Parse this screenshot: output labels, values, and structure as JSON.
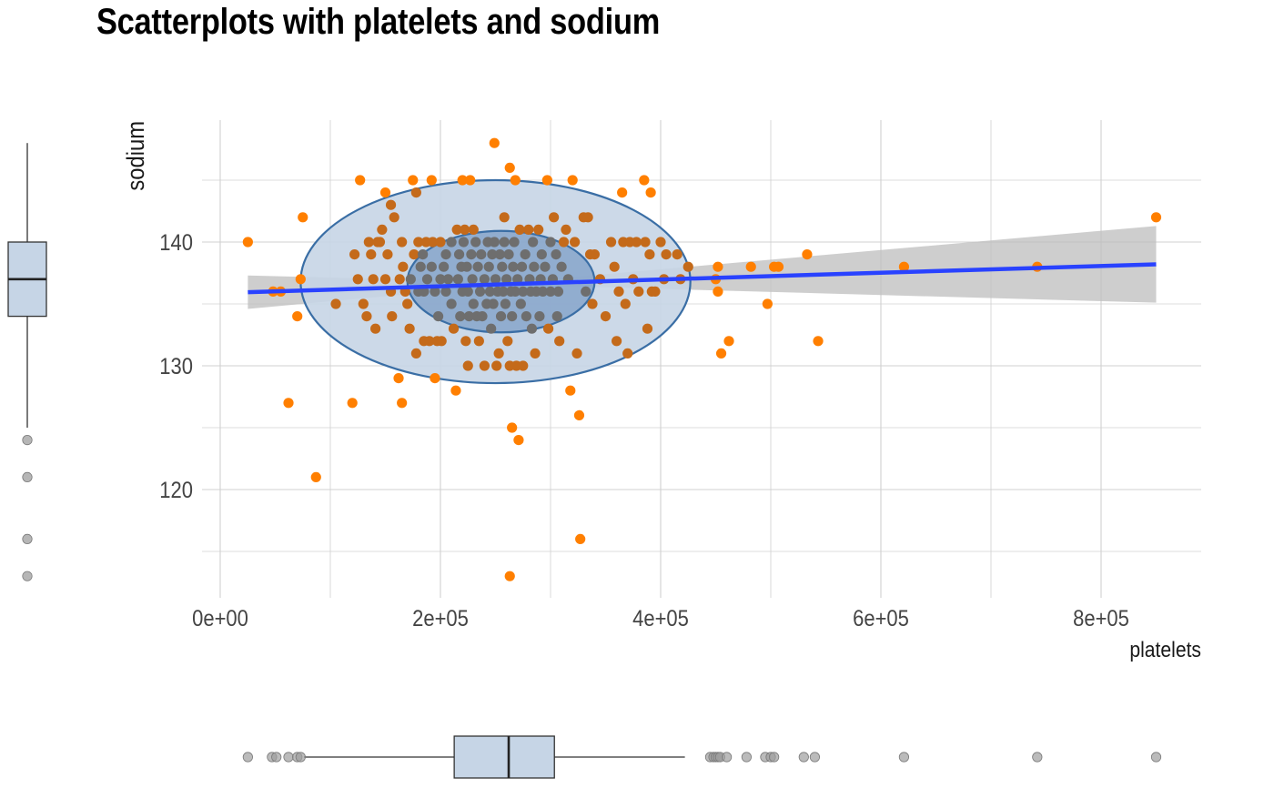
{
  "chart_data": {
    "type": "scatter",
    "title": "Scatterplots with platelets and sodium",
    "xlabel": "platelets",
    "ylabel": "sodium",
    "xlim": [
      -10000.0,
      890000.0
    ],
    "ylim": [
      112,
      150
    ],
    "x_ticks": [
      {
        "value": 0,
        "label": "0e+00"
      },
      {
        "value": 200000,
        "label": "2e+05"
      },
      {
        "value": 400000,
        "label": "4e+05"
      },
      {
        "value": 600000,
        "label": "6e+05"
      },
      {
        "value": 800000,
        "label": "8e+05"
      }
    ],
    "y_ticks": [
      {
        "value": 120,
        "label": "120"
      },
      {
        "value": 130,
        "label": "130"
      },
      {
        "value": 140,
        "label": "140"
      }
    ],
    "grid": true,
    "colors": {
      "points": "#ff7f00",
      "points_in_ellipse": "#c46a1a",
      "points_in_inner": "#6e6e6e",
      "regression_line": "#2942ff",
      "ci_band": "#bdbdbd",
      "ellipse_fill": "#c6d5e6",
      "ellipse_stroke": "#3a6ea5",
      "inner_ellipse_fill": "#7d9dc7",
      "box_fill": "#c6d5e6",
      "box_outlier": "#9e9e9e",
      "grid": "#d0d0d0"
    },
    "regression": {
      "x_start": 25100,
      "y_start": 135.95,
      "x_end": 850000,
      "y_end": 138.2
    },
    "confidence_band": [
      [
        25100,
        134.6,
        137.3
      ],
      [
        265000,
        136.55,
        136.75
      ],
      [
        850000,
        135.1,
        141.3
      ]
    ],
    "ellipses": [
      {
        "cx": 250000,
        "cy": 136.8,
        "rx": 177000,
        "ry": 8.2,
        "level": "outer"
      },
      {
        "cx": 255000,
        "cy": 136.8,
        "rx": 85000,
        "ry": 4.1,
        "level": "inner"
      }
    ],
    "points": [
      [
        25100,
        140
      ],
      [
        48000,
        136
      ],
      [
        55000,
        136
      ],
      [
        62000,
        127
      ],
      [
        70000,
        134
      ],
      [
        73000,
        137
      ],
      [
        75000,
        142
      ],
      [
        87000,
        121
      ],
      [
        105000,
        135
      ],
      [
        120000,
        127
      ],
      [
        122000,
        139
      ],
      [
        125000,
        137
      ],
      [
        127000,
        145
      ],
      [
        130000,
        135
      ],
      [
        133000,
        134
      ],
      [
        135000,
        140
      ],
      [
        137000,
        139
      ],
      [
        139000,
        137
      ],
      [
        141000,
        133
      ],
      [
        143000,
        140
      ],
      [
        145000,
        140
      ],
      [
        147000,
        141
      ],
      [
        150000,
        144
      ],
      [
        150000,
        137
      ],
      [
        152000,
        139
      ],
      [
        155000,
        136
      ],
      [
        155000,
        143
      ],
      [
        156000,
        134
      ],
      [
        158000,
        142
      ],
      [
        162000,
        129
      ],
      [
        163000,
        137
      ],
      [
        165000,
        140
      ],
      [
        165000,
        127
      ],
      [
        166000,
        138
      ],
      [
        168000,
        136
      ],
      [
        170000,
        135
      ],
      [
        172000,
        133
      ],
      [
        173000,
        137
      ],
      [
        175000,
        145
      ],
      [
        176000,
        139
      ],
      [
        178000,
        131
      ],
      [
        178000,
        144
      ],
      [
        180000,
        136
      ],
      [
        180000,
        140
      ],
      [
        182000,
        138
      ],
      [
        184000,
        139
      ],
      [
        185000,
        132
      ],
      [
        185000,
        136
      ],
      [
        187000,
        140
      ],
      [
        188000,
        137
      ],
      [
        190000,
        132
      ],
      [
        192000,
        145
      ],
      [
        192000,
        138
      ],
      [
        193000,
        140
      ],
      [
        195000,
        136
      ],
      [
        195000,
        129
      ],
      [
        197000,
        132
      ],
      [
        198000,
        134
      ],
      [
        200000,
        140
      ],
      [
        200000,
        137
      ],
      [
        201000,
        132
      ],
      [
        203000,
        138
      ],
      [
        205000,
        139
      ],
      [
        205000,
        136
      ],
      [
        207000,
        137
      ],
      [
        210000,
        140
      ],
      [
        210000,
        135
      ],
      [
        212000,
        133
      ],
      [
        214000,
        128
      ],
      [
        215000,
        141
      ],
      [
        216000,
        137
      ],
      [
        217000,
        139
      ],
      [
        218000,
        134
      ],
      [
        219000,
        138
      ],
      [
        220000,
        136
      ],
      [
        220000,
        145
      ],
      [
        221000,
        140
      ],
      [
        222000,
        141
      ],
      [
        223000,
        132
      ],
      [
        224000,
        138
      ],
      [
        225000,
        136
      ],
      [
        225000,
        130
      ],
      [
        226000,
        134
      ],
      [
        227000,
        145
      ],
      [
        228000,
        139
      ],
      [
        229000,
        137
      ],
      [
        230000,
        141
      ],
      [
        230000,
        135
      ],
      [
        232000,
        140
      ],
      [
        233000,
        134
      ],
      [
        234000,
        138
      ],
      [
        235000,
        132
      ],
      [
        236000,
        136
      ],
      [
        237000,
        139
      ],
      [
        238000,
        134
      ],
      [
        240000,
        137
      ],
      [
        240000,
        130
      ],
      [
        242000,
        135
      ],
      [
        243000,
        140
      ],
      [
        244000,
        138
      ],
      [
        245000,
        136
      ],
      [
        246000,
        133
      ],
      [
        247000,
        139
      ],
      [
        248000,
        135
      ],
      [
        249000,
        140
      ],
      [
        249000,
        148
      ],
      [
        250000,
        137
      ],
      [
        251000,
        130
      ],
      [
        252000,
        136
      ],
      [
        253000,
        131
      ],
      [
        254000,
        139
      ],
      [
        255000,
        134
      ],
      [
        256000,
        138
      ],
      [
        257000,
        136
      ],
      [
        258000,
        140
      ],
      [
        258000,
        142
      ],
      [
        259000,
        135
      ],
      [
        260000,
        137
      ],
      [
        261000,
        132
      ],
      [
        262000,
        139
      ],
      [
        263000,
        146
      ],
      [
        263000,
        130
      ],
      [
        264000,
        136
      ],
      [
        265000,
        134
      ],
      [
        265000,
        125
      ],
      [
        266000,
        138
      ],
      [
        267000,
        140
      ],
      [
        268000,
        136
      ],
      [
        268000,
        145
      ],
      [
        269000,
        130
      ],
      [
        270000,
        137
      ],
      [
        271000,
        124
      ],
      [
        272000,
        141
      ],
      [
        273000,
        135
      ],
      [
        274000,
        138
      ],
      [
        275000,
        136
      ],
      [
        275000,
        130
      ],
      [
        277000,
        139
      ],
      [
        278000,
        134
      ],
      [
        280000,
        141
      ],
      [
        281000,
        137
      ],
      [
        282000,
        136
      ],
      [
        283000,
        133
      ],
      [
        284000,
        140
      ],
      [
        285000,
        138
      ],
      [
        286000,
        131
      ],
      [
        287000,
        136
      ],
      [
        289000,
        141
      ],
      [
        290000,
        134
      ],
      [
        291000,
        137
      ],
      [
        292000,
        139
      ],
      [
        293000,
        136
      ],
      [
        295000,
        138
      ],
      [
        297000,
        145
      ],
      [
        298000,
        133
      ],
      [
        300000,
        136
      ],
      [
        300000,
        140
      ],
      [
        302000,
        137
      ],
      [
        303000,
        142
      ],
      [
        305000,
        139
      ],
      [
        306000,
        134
      ],
      [
        307000,
        136
      ],
      [
        308000,
        132
      ],
      [
        310000,
        138
      ],
      [
        312000,
        140
      ],
      [
        314000,
        141
      ],
      [
        316000,
        137
      ],
      [
        318000,
        128
      ],
      [
        320000,
        145
      ],
      [
        322000,
        140
      ],
      [
        324000,
        131
      ],
      [
        326000,
        126
      ],
      [
        327000,
        116
      ],
      [
        330000,
        142
      ],
      [
        332000,
        136
      ],
      [
        334000,
        142
      ],
      [
        336000,
        139
      ],
      [
        338000,
        135
      ],
      [
        340000,
        139
      ],
      [
        345000,
        137
      ],
      [
        350000,
        134
      ],
      [
        355000,
        140
      ],
      [
        358000,
        138
      ],
      [
        360000,
        132
      ],
      [
        362000,
        136
      ],
      [
        365000,
        144
      ],
      [
        366000,
        140
      ],
      [
        368000,
        135
      ],
      [
        370000,
        131
      ],
      [
        372000,
        140
      ],
      [
        375000,
        137
      ],
      [
        378000,
        140
      ],
      [
        380000,
        136
      ],
      [
        385000,
        145
      ],
      [
        386000,
        140
      ],
      [
        388000,
        133
      ],
      [
        390000,
        139
      ],
      [
        391000,
        144
      ],
      [
        392000,
        136
      ],
      [
        395000,
        136
      ],
      [
        400000,
        140
      ],
      [
        403000,
        137
      ],
      [
        405000,
        139
      ],
      [
        415000,
        139
      ],
      [
        418000,
        137
      ],
      [
        425000,
        138
      ],
      [
        450000,
        137
      ],
      [
        452000,
        136
      ],
      [
        452000,
        138
      ],
      [
        455000,
        131
      ],
      [
        462000,
        132
      ],
      [
        482000,
        138
      ],
      [
        497000,
        135
      ],
      [
        503000,
        138
      ],
      [
        507000,
        138
      ],
      [
        533000,
        139
      ],
      [
        543000,
        132
      ],
      [
        621000,
        138
      ],
      [
        742000,
        138
      ],
      [
        850000,
        142
      ],
      [
        263000,
        113
      ]
    ],
    "box_sodium": {
      "min": 125,
      "q1": 134,
      "median": 137,
      "q3": 140,
      "max": 148,
      "outliers": [
        124,
        121,
        116,
        113
      ]
    },
    "box_platelets": {
      "min": 76000,
      "q1": 212500,
      "median": 262000,
      "q3": 303500,
      "max": 422000,
      "outliers": [
        25100,
        47000,
        51000,
        62000,
        70000,
        73000,
        445000,
        448000,
        450000,
        452000,
        454000,
        460000,
        478000,
        495000,
        500000,
        503000,
        530000,
        540000,
        621000,
        742000,
        850000
      ]
    }
  }
}
